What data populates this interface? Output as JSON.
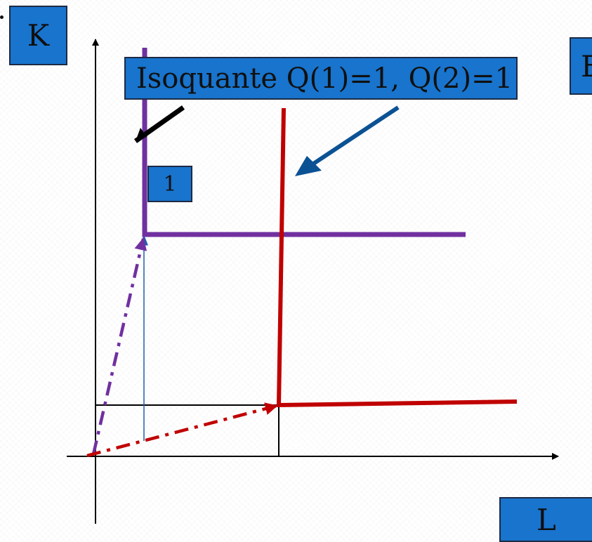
{
  "labels": {
    "k_axis": "K",
    "title": "Isoquante Q(1)=1, Q(2)=1",
    "cut_off": "E",
    "one": "1",
    "l_axis": "L"
  },
  "colors": {
    "label_fill": "#1874cd",
    "purple_isoquant": "#7030a0",
    "red_isoquant": "#c00000",
    "blue_arrow": "#0b5294",
    "black": "#000000",
    "thin_blue": "#1f5fa8"
  }
}
